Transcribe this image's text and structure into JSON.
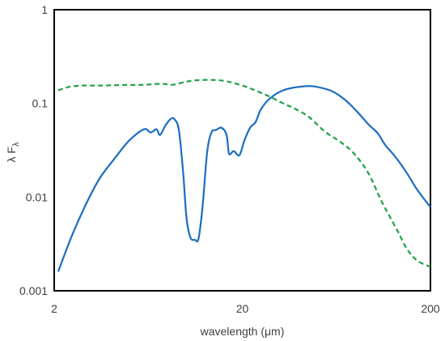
{
  "chart_data": {
    "type": "line",
    "title": "",
    "xlabel": "wavelength (μm)",
    "ylabel_main": "λ F",
    "ylabel_sub": "λ",
    "x_scale": "log",
    "y_scale": "log",
    "xlim": [
      2,
      200
    ],
    "ylim": [
      0.001,
      1
    ],
    "x_ticks": [
      {
        "value": 2,
        "label": "2"
      },
      {
        "value": 20,
        "label": "20"
      },
      {
        "value": 200,
        "label": "200"
      }
    ],
    "y_ticks": [
      {
        "value": 0.001,
        "label": "0.001"
      },
      {
        "value": 0.01,
        "label": "0.01"
      },
      {
        "value": 0.1,
        "label": "0.1"
      },
      {
        "value": 1,
        "label": "1"
      }
    ],
    "grid": false,
    "legend": "none",
    "series": [
      {
        "style": "solid",
        "color": "#1f6fbf",
        "points": [
          [
            2.1,
            0.0016
          ],
          [
            2.5,
            0.004
          ],
          [
            3.0,
            0.009
          ],
          [
            3.5,
            0.016
          ],
          [
            4.2,
            0.026
          ],
          [
            5.0,
            0.04
          ],
          [
            6.0,
            0.053
          ],
          [
            6.5,
            0.049
          ],
          [
            7.0,
            0.053
          ],
          [
            7.3,
            0.046
          ],
          [
            7.8,
            0.058
          ],
          [
            8.3,
            0.068
          ],
          [
            8.7,
            0.068
          ],
          [
            9.2,
            0.052
          ],
          [
            9.7,
            0.018
          ],
          [
            10.1,
            0.006
          ],
          [
            10.6,
            0.0037
          ],
          [
            11.2,
            0.0035
          ],
          [
            11.7,
            0.0036
          ],
          [
            12.3,
            0.008
          ],
          [
            13.0,
            0.03
          ],
          [
            13.7,
            0.049
          ],
          [
            14.5,
            0.052
          ],
          [
            15.5,
            0.055
          ],
          [
            16.5,
            0.046
          ],
          [
            17.0,
            0.029
          ],
          [
            18.0,
            0.031
          ],
          [
            19.3,
            0.028
          ],
          [
            20.5,
            0.04
          ],
          [
            22.0,
            0.055
          ],
          [
            23.5,
            0.063
          ],
          [
            25.0,
            0.085
          ],
          [
            27.0,
            0.105
          ],
          [
            30.0,
            0.125
          ],
          [
            33.0,
            0.138
          ],
          [
            36.0,
            0.145
          ],
          [
            40.0,
            0.15
          ],
          [
            45.0,
            0.153
          ],
          [
            50.0,
            0.15
          ],
          [
            60.0,
            0.135
          ],
          [
            70.0,
            0.11
          ],
          [
            80.0,
            0.085
          ],
          [
            95.0,
            0.058
          ],
          [
            105.0,
            0.048
          ],
          [
            115.0,
            0.036
          ],
          [
            130.0,
            0.027
          ],
          [
            150.0,
            0.018
          ],
          [
            170.0,
            0.012
          ],
          [
            200.0,
            0.0078
          ]
        ]
      },
      {
        "style": "dashed",
        "color": "#20a14a",
        "points": [
          [
            2.1,
            0.138
          ],
          [
            2.4,
            0.15
          ],
          [
            2.8,
            0.155
          ],
          [
            3.5,
            0.155
          ],
          [
            4.5,
            0.157
          ],
          [
            6.0,
            0.158
          ],
          [
            7.5,
            0.162
          ],
          [
            8.5,
            0.158
          ],
          [
            10.0,
            0.17
          ],
          [
            11.5,
            0.177
          ],
          [
            14.0,
            0.178
          ],
          [
            16.0,
            0.174
          ],
          [
            18.0,
            0.165
          ],
          [
            21.0,
            0.15
          ],
          [
            24.0,
            0.135
          ],
          [
            28.0,
            0.118
          ],
          [
            33.0,
            0.1
          ],
          [
            38.0,
            0.088
          ],
          [
            45.0,
            0.072
          ],
          [
            55.0,
            0.05
          ],
          [
            65.0,
            0.04
          ],
          [
            75.0,
            0.032
          ],
          [
            85.0,
            0.024
          ],
          [
            95.0,
            0.017
          ],
          [
            110.0,
            0.009
          ],
          [
            120.0,
            0.0065
          ],
          [
            135.0,
            0.0042
          ],
          [
            150.0,
            0.0028
          ],
          [
            170.0,
            0.0021
          ],
          [
            200.0,
            0.0018
          ]
        ]
      }
    ]
  }
}
